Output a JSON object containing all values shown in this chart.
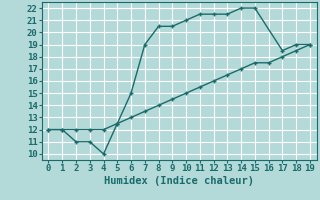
{
  "xlabel": "Humidex (Indice chaleur)",
  "background_color": "#b3d9d9",
  "grid_color": "#ffffff",
  "line_color": "#1a6b6b",
  "xlim": [
    -0.5,
    19.5
  ],
  "ylim": [
    9.5,
    22.5
  ],
  "xticks": [
    0,
    1,
    2,
    3,
    4,
    5,
    6,
    7,
    8,
    9,
    10,
    11,
    12,
    13,
    14,
    15,
    16,
    17,
    18,
    19
  ],
  "yticks": [
    10,
    11,
    12,
    13,
    14,
    15,
    16,
    17,
    18,
    19,
    20,
    21,
    22
  ],
  "series1_x": [
    0,
    1,
    2,
    3,
    4,
    5,
    6,
    7,
    8,
    9,
    10,
    11,
    12,
    13,
    14,
    15,
    17,
    18,
    19
  ],
  "series1_y": [
    12,
    12,
    11,
    11,
    10,
    12.5,
    15,
    19,
    20.5,
    20.5,
    21,
    21.5,
    21.5,
    21.5,
    22,
    22,
    18.5,
    19,
    19
  ],
  "series2_x": [
    0,
    1,
    2,
    3,
    4,
    5,
    6,
    7,
    8,
    9,
    10,
    11,
    12,
    13,
    14,
    15,
    16,
    17,
    18,
    19
  ],
  "series2_y": [
    12,
    12,
    12,
    12,
    12,
    12.5,
    13,
    13.5,
    14,
    14.5,
    15,
    15.5,
    16,
    16.5,
    17,
    17.5,
    17.5,
    18,
    18.5,
    19
  ],
  "tick_fontsize": 6.5,
  "xlabel_fontsize": 7.5
}
